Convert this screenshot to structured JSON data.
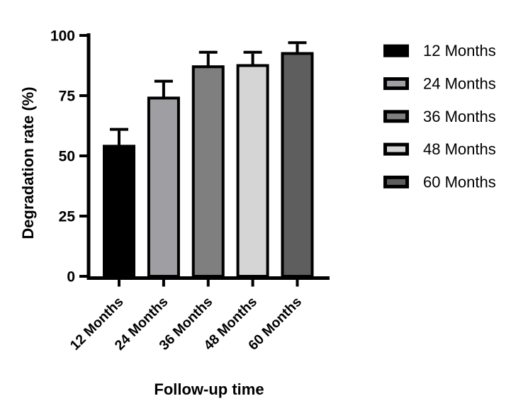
{
  "chart_data": {
    "type": "bar",
    "title": "",
    "xlabel": "Follow-up time",
    "ylabel": "Degradation rate (%)",
    "categories": [
      "12 Months",
      "24 Months",
      "36 Months",
      "48 Months",
      "60 Months"
    ],
    "values": [
      54,
      74,
      87,
      87.5,
      92.5
    ],
    "errors_plus": [
      7,
      7,
      6,
      5.5,
      4.5
    ],
    "error_style": "upper-only",
    "bar_fill_colors": [
      "#000000",
      "#9f9fa3",
      "#7f7f7f",
      "#d5d5d5",
      "#5e5e5e"
    ],
    "bar_border_color": "#000000",
    "axis_color": "#000000",
    "text_color": "#000000",
    "background_color": "#ffffff",
    "ylim": [
      0,
      100
    ],
    "yticks": [
      0,
      25,
      50,
      75,
      100
    ],
    "grid": false,
    "legend": {
      "position": "right",
      "entries": [
        {
          "label": "12 Months",
          "fill": "#000000"
        },
        {
          "label": "24 Months",
          "fill": "#9f9fa3"
        },
        {
          "label": "36 Months",
          "fill": "#7f7f7f"
        },
        {
          "label": "48 Months",
          "fill": "#d5d5d5"
        },
        {
          "label": "60 Months",
          "fill": "#5e5e5e"
        }
      ]
    }
  }
}
